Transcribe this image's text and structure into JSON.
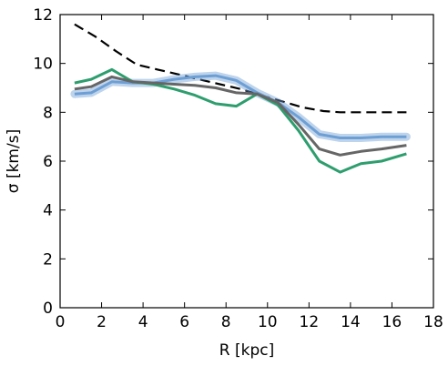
{
  "chart_data": {
    "type": "line",
    "xlabel": "R [kpc]",
    "ylabel": "σ [km/s]",
    "xlim": [
      0,
      18
    ],
    "ylim": [
      0,
      12
    ],
    "xticks": [
      0,
      2,
      4,
      6,
      8,
      10,
      12,
      14,
      16,
      18
    ],
    "yticks": [
      0,
      2,
      4,
      6,
      8,
      10,
      12
    ],
    "grid": false,
    "series": [
      {
        "style": "dashed",
        "color": "#000000",
        "x": [
          0.7,
          1.7,
          2.7,
          3.7,
          4.7,
          5.7,
          6.7,
          7.7,
          8.7,
          9.7,
          10.7,
          11.7,
          12.7,
          13.5,
          14.5,
          15.5,
          16.7
        ],
        "y": [
          11.6,
          11.1,
          10.5,
          9.95,
          9.75,
          9.55,
          9.35,
          9.15,
          8.95,
          8.7,
          8.45,
          8.2,
          8.05,
          8.0,
          8.0,
          8.0,
          8.0
        ]
      },
      {
        "style": "band",
        "color": "#6e9fd4",
        "x": [
          0.7,
          1.5,
          2.5,
          3.5,
          4.5,
          5.5,
          6.5,
          7.5,
          8.5,
          9.5,
          10.5,
          11.5,
          12.5,
          13.5,
          14.5,
          15.5,
          16.7
        ],
        "y": [
          8.75,
          8.8,
          9.25,
          9.2,
          9.2,
          9.35,
          9.45,
          9.5,
          9.3,
          8.8,
          8.4,
          7.8,
          7.1,
          6.95,
          6.95,
          7.0,
          7.0
        ]
      },
      {
        "style": "solid",
        "color": "#2e9e6e",
        "x": [
          0.7,
          1.5,
          2.5,
          3.5,
          4.5,
          5.5,
          6.5,
          7.5,
          8.5,
          9.5,
          10.5,
          11.5,
          12.5,
          13.5,
          14.5,
          15.5,
          16.7
        ],
        "y": [
          9.2,
          9.35,
          9.75,
          9.25,
          9.15,
          8.95,
          8.7,
          8.35,
          8.25,
          8.75,
          8.3,
          7.25,
          6.0,
          5.55,
          5.9,
          6.0,
          6.3
        ]
      },
      {
        "style": "solid",
        "color": "#666666",
        "x": [
          0.7,
          1.5,
          2.5,
          3.5,
          4.5,
          5.5,
          6.5,
          7.5,
          8.5,
          9.5,
          10.5,
          11.5,
          12.5,
          13.5,
          14.5,
          15.5,
          16.7
        ],
        "y": [
          8.95,
          9.05,
          9.45,
          9.25,
          9.2,
          9.15,
          9.1,
          9.0,
          8.8,
          8.75,
          8.4,
          7.5,
          6.5,
          6.25,
          6.4,
          6.5,
          6.65
        ]
      }
    ]
  }
}
